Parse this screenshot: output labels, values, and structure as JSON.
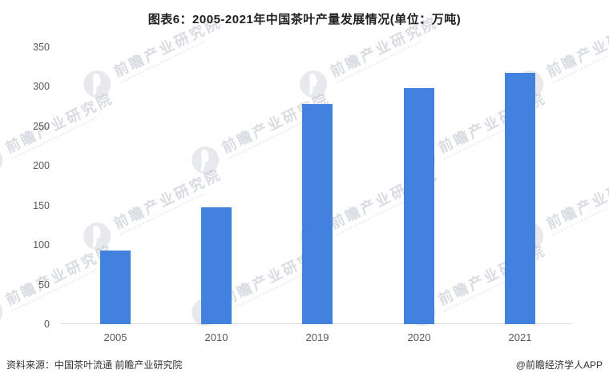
{
  "header": {
    "title": "图表6：2005-2021年中国茶叶产量发展情况(单位：万吨)"
  },
  "chart_data": {
    "type": "bar",
    "title": "图表6：2005-2021年中国茶叶产量发展情况(单位：万吨)",
    "categories": [
      "2005",
      "2010",
      "2019",
      "2020",
      "2021"
    ],
    "values": [
      93.5,
      147.5,
      277.7,
      298.6,
      318
    ],
    "unit": "万吨",
    "xlabel": "",
    "ylabel": "",
    "ylim": [
      0,
      350
    ],
    "y_ticks": [
      0,
      50,
      100,
      150,
      200,
      250,
      300,
      350
    ],
    "grid": "off",
    "legend": "none",
    "bar_color": "#4282de"
  },
  "watermark": {
    "text": "前瞻产业研究院"
  },
  "footer": {
    "source": "资料来源：中国茶叶流通 前瞻产业研究院",
    "credit": "@前瞻经济学人APP"
  }
}
